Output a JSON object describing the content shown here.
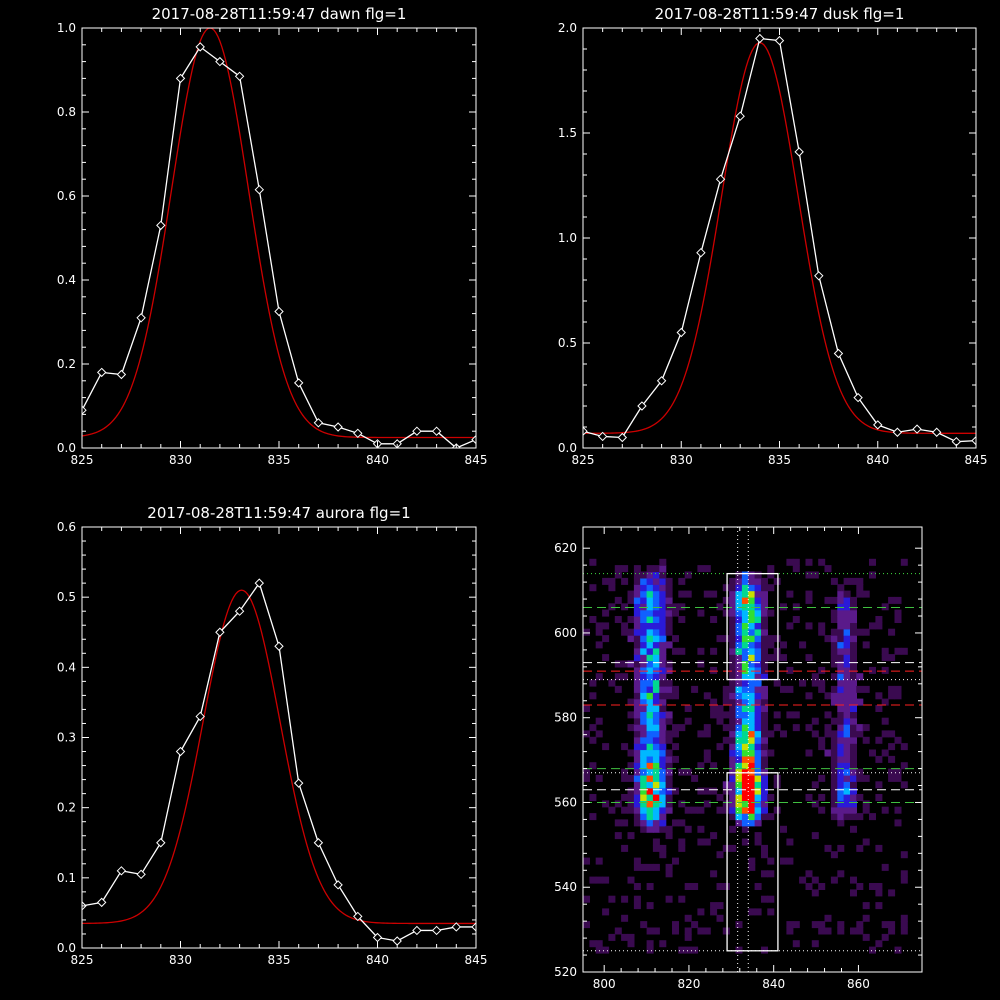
{
  "figure": {
    "background": "#000000",
    "foreground": "#ffffff",
    "fit_color": "#cc0000"
  },
  "chart_data": [
    {
      "id": "dawn",
      "type": "line",
      "title": "2017-08-28T11:59:47 dawn flg=1",
      "xlabel": "",
      "ylabel": "",
      "xlim": [
        825,
        845
      ],
      "ylim": [
        0,
        1.0
      ],
      "xticks": [
        825,
        830,
        835,
        840,
        845
      ],
      "yticks": [
        0.0,
        0.2,
        0.4,
        0.6,
        0.8,
        1.0
      ],
      "ytick_labels": [
        "0.0",
        "0.2",
        "0.4",
        "0.6",
        "0.8",
        "1.0"
      ],
      "series": [
        {
          "role": "data",
          "color": "#ffffff",
          "marker": "diamond",
          "x": [
            825,
            826,
            827,
            828,
            829,
            830,
            831,
            832,
            833,
            834,
            835,
            836,
            837,
            838,
            839,
            840,
            841,
            842,
            843,
            844,
            845
          ],
          "y": [
            0.09,
            0.18,
            0.175,
            0.31,
            0.53,
            0.88,
            0.955,
            0.92,
            0.885,
            0.615,
            0.325,
            0.155,
            0.06,
            0.05,
            0.035,
            0.01,
            0.01,
            0.04,
            0.04,
            0.0,
            0.02
          ]
        },
        {
          "role": "fit",
          "color": "#cc0000",
          "gauss": {
            "amp": 0.975,
            "center": 831.5,
            "sigma": 1.95,
            "offset": 0.025
          }
        }
      ]
    },
    {
      "id": "dusk",
      "type": "line",
      "title": "2017-08-28T11:59:47 dusk flg=1",
      "xlabel": "",
      "ylabel": "",
      "xlim": [
        825,
        845
      ],
      "ylim": [
        0,
        2.0
      ],
      "xticks": [
        825,
        830,
        835,
        840,
        845
      ],
      "yticks": [
        0.0,
        0.5,
        1.0,
        1.5,
        2.0
      ],
      "ytick_labels": [
        "0.0",
        "0.5",
        "1.0",
        "1.5",
        "2.0"
      ],
      "series": [
        {
          "role": "data",
          "color": "#ffffff",
          "marker": "diamond",
          "x": [
            825,
            826,
            827,
            828,
            829,
            830,
            831,
            832,
            833,
            834,
            835,
            836,
            837,
            838,
            839,
            840,
            841,
            842,
            843,
            844,
            845
          ],
          "y": [
            0.08,
            0.055,
            0.05,
            0.2,
            0.32,
            0.55,
            0.93,
            1.28,
            1.58,
            1.95,
            1.94,
            1.41,
            0.82,
            0.45,
            0.24,
            0.11,
            0.075,
            0.09,
            0.075,
            0.03,
            0.035
          ]
        },
        {
          "role": "fit",
          "color": "#cc0000",
          "gauss": {
            "amp": 1.86,
            "center": 834.0,
            "sigma": 1.95,
            "offset": 0.07
          }
        }
      ]
    },
    {
      "id": "aurora",
      "type": "line",
      "title": "2017-08-28T11:59:47 aurora flg=1",
      "xlabel": "",
      "ylabel": "",
      "xlim": [
        825,
        845
      ],
      "ylim": [
        0,
        0.6
      ],
      "xticks": [
        825,
        830,
        835,
        840,
        845
      ],
      "yticks": [
        0.0,
        0.1,
        0.2,
        0.3,
        0.4,
        0.5,
        0.6
      ],
      "ytick_labels": [
        "0.0",
        "0.1",
        "0.2",
        "0.3",
        "0.4",
        "0.5",
        "0.6"
      ],
      "series": [
        {
          "role": "data",
          "color": "#ffffff",
          "marker": "diamond",
          "x": [
            825,
            826,
            827,
            828,
            829,
            830,
            831,
            832,
            833,
            834,
            835,
            836,
            837,
            838,
            839,
            840,
            841,
            842,
            843,
            844,
            845
          ],
          "y": [
            0.06,
            0.065,
            0.11,
            0.105,
            0.15,
            0.28,
            0.33,
            0.45,
            0.48,
            0.52,
            0.43,
            0.235,
            0.15,
            0.09,
            0.045,
            0.015,
            0.01,
            0.025,
            0.025,
            0.03,
            0.03
          ]
        },
        {
          "role": "fit",
          "color": "#cc0000",
          "gauss": {
            "amp": 0.475,
            "center": 833.1,
            "sigma": 1.95,
            "offset": 0.035
          }
        }
      ]
    },
    {
      "id": "spectral-image",
      "type": "heatmap",
      "title": "",
      "xlabel": "",
      "ylabel": "",
      "xlim": [
        795,
        875
      ],
      "ylim": [
        520,
        625
      ],
      "xticks": [
        800,
        820,
        840,
        860
      ],
      "yticks": [
        520,
        540,
        560,
        580,
        600,
        620
      ],
      "cell_size": [
        1.5,
        1.5
      ],
      "colormap": [
        "#000000",
        "#3a0a50",
        "#5a1a8a",
        "#2a1ad8",
        "#1060ff",
        "#00b8ff",
        "#00d890",
        "#30e030",
        "#c8e000",
        "#ff5000",
        "#ff0000"
      ],
      "emission_bands": [
        {
          "x_center": 811,
          "x_width": 2.4,
          "segments": [
            [
              560,
              0.95
            ],
            [
              566,
              0.85
            ],
            [
              575,
              0.5
            ],
            [
              600,
              0.55
            ],
            [
              609,
              0.6
            ]
          ],
          "y_range": [
            553,
            617
          ]
        },
        {
          "x_center": 834,
          "x_width": 2.2,
          "segments": [
            [
              561,
              1.45
            ],
            [
              565,
              1.3
            ],
            [
              571,
              0.9
            ],
            [
              585,
              0.55
            ],
            [
              596,
              0.7
            ],
            [
              608,
              0.9
            ]
          ],
          "y_range": [
            553,
            617
          ]
        },
        {
          "x_center": 857,
          "x_width": 2.0,
          "segments": [
            [
              561,
              0.45
            ],
            [
              575,
              0.3
            ],
            [
              606,
              0.3
            ]
          ],
          "y_range": [
            553,
            617
          ]
        }
      ],
      "boxes": [
        {
          "x": [
            829,
            841
          ],
          "y": [
            589,
            614
          ],
          "color": "#ffffff"
        },
        {
          "x": [
            829,
            841
          ],
          "y": [
            525,
            567
          ],
          "color": "#ffffff"
        }
      ],
      "hlines": [
        {
          "y": 614,
          "color": "#40e040",
          "style": "dotted"
        },
        {
          "y": 606,
          "color": "#40c040",
          "style": "dashed"
        },
        {
          "y": 593,
          "color": "#ffffff",
          "style": "dashed"
        },
        {
          "y": 591,
          "color": "#ff2020",
          "style": "dashed"
        },
        {
          "y": 589,
          "color": "#ffffff",
          "style": "dotted"
        },
        {
          "y": 583,
          "color": "#ff2020",
          "style": "dashed"
        },
        {
          "y": 568,
          "color": "#40c040",
          "style": "dashed"
        },
        {
          "y": 567,
          "color": "#ffffff",
          "style": "dotted"
        },
        {
          "y": 563,
          "color": "#ffffff",
          "style": "dashed"
        },
        {
          "y": 560,
          "color": "#40c040",
          "style": "dashed"
        },
        {
          "y": 525,
          "color": "#ffffff",
          "style": "dotted"
        }
      ],
      "vlines": [
        {
          "x": 831.5,
          "color": "#ffffff",
          "style": "dotted"
        },
        {
          "x": 834.0,
          "color": "#ffffff",
          "style": "dotted"
        }
      ]
    }
  ]
}
